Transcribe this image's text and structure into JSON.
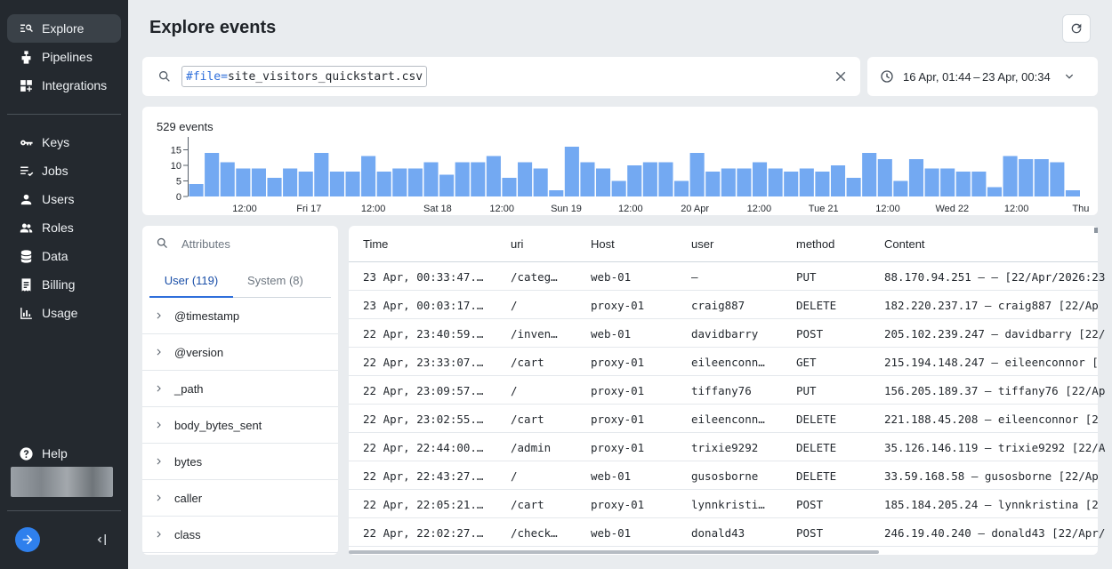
{
  "sidebar": {
    "nav_top": [
      {
        "label": "Explore",
        "icon": "explore-icon",
        "active": true
      },
      {
        "label": "Pipelines",
        "icon": "pipelines-icon"
      },
      {
        "label": "Integrations",
        "icon": "integrations-icon"
      }
    ],
    "nav_bottom": [
      {
        "label": "Keys",
        "icon": "key-icon"
      },
      {
        "label": "Jobs",
        "icon": "jobs-icon"
      },
      {
        "label": "Users",
        "icon": "user-icon"
      },
      {
        "label": "Roles",
        "icon": "roles-icon"
      },
      {
        "label": "Data",
        "icon": "database-icon"
      },
      {
        "label": "Billing",
        "icon": "billing-icon"
      },
      {
        "label": "Usage",
        "icon": "usage-icon"
      }
    ],
    "help_label": "Help"
  },
  "header": {
    "title": "Explore events"
  },
  "search": {
    "query_key": "#file",
    "query_op": "=",
    "query_value": "site_visitors_quickstart.csv"
  },
  "date_range": {
    "label": "16 Apr, 01:44 – 23 Apr, 00:34"
  },
  "histogram": {
    "title": "529 events",
    "chart_data": {
      "type": "bar",
      "title": "529 events",
      "y_ticks": [
        "0",
        "5",
        "10",
        "15"
      ],
      "ylim": [
        0,
        18
      ],
      "x_ticks": [
        "12:00",
        "Fri 17",
        "12:00",
        "Sat 18",
        "12:00",
        "Sun 19",
        "12:00",
        "20 Apr",
        "12:00",
        "Tue 21",
        "12:00",
        "Wed 22",
        "12:00",
        "Thu"
      ],
      "values": [
        4,
        14,
        11,
        9,
        9,
        6,
        9,
        8,
        14,
        8,
        8,
        13,
        8,
        9,
        9,
        11,
        7,
        11,
        11,
        13,
        6,
        11,
        9,
        2,
        16,
        11,
        9,
        5,
        10,
        11,
        11,
        5,
        14,
        8,
        9,
        9,
        11,
        9,
        8,
        9,
        8,
        10,
        6,
        14,
        12,
        5,
        12,
        9,
        9,
        8,
        8,
        3,
        13,
        12,
        12,
        11,
        2
      ],
      "color": "#73a9f2"
    }
  },
  "attributes": {
    "search_placeholder": "Attributes",
    "tabs": [
      {
        "label": "User (119)",
        "active": true
      },
      {
        "label": "System (8)"
      }
    ],
    "items": [
      "@timestamp",
      "@version",
      "_path",
      "body_bytes_sent",
      "bytes",
      "caller",
      "class"
    ]
  },
  "events_table": {
    "columns": [
      "Time",
      "uri",
      "Host",
      "user",
      "method",
      "Content"
    ],
    "rows": [
      [
        "23 Apr, 00:33:47.…",
        "/categ…",
        "web-01",
        "–",
        "PUT",
        "88.170.94.251 – – [22/Apr/2026:23"
      ],
      [
        "23 Apr, 00:03:17.…",
        "/",
        "proxy-01",
        "craig887",
        "DELETE",
        "182.220.237.17 – craig887 [22/Ap"
      ],
      [
        "22 Apr, 23:40:59.…",
        "/inven…",
        "web-01",
        "davidbarry",
        "POST",
        "205.102.239.247 – davidbarry [22/"
      ],
      [
        "22 Apr, 23:33:07.…",
        "/cart",
        "proxy-01",
        "eileenconn…",
        "GET",
        "215.194.148.247 – eileenconnor ["
      ],
      [
        "22 Apr, 23:09:57.…",
        "/",
        "proxy-01",
        "tiffany76",
        "PUT",
        "156.205.189.37 – tiffany76 [22/Ap"
      ],
      [
        "22 Apr, 23:02:55.…",
        "/cart",
        "proxy-01",
        "eileenconn…",
        "DELETE",
        "221.188.45.208 – eileenconnor [2"
      ],
      [
        "22 Apr, 22:44:00.…",
        "/admin",
        "proxy-01",
        "trixie9292",
        "DELETE",
        "35.126.146.119 – trixie9292 [22/A"
      ],
      [
        "22 Apr, 22:43:27.…",
        "/",
        "web-01",
        "gusosborne",
        "DELETE",
        "33.59.168.58 – gusosborne [22/Ap"
      ],
      [
        "22 Apr, 22:05:21.…",
        "/cart",
        "proxy-01",
        "lynnkristi…",
        "POST",
        "185.184.205.24 – lynnkristina [2"
      ],
      [
        "22 Apr, 22:02:27.…",
        "/check…",
        "web-01",
        "donald43",
        "POST",
        "246.19.40.240 – donald43 [22/Apr/"
      ]
    ]
  }
}
